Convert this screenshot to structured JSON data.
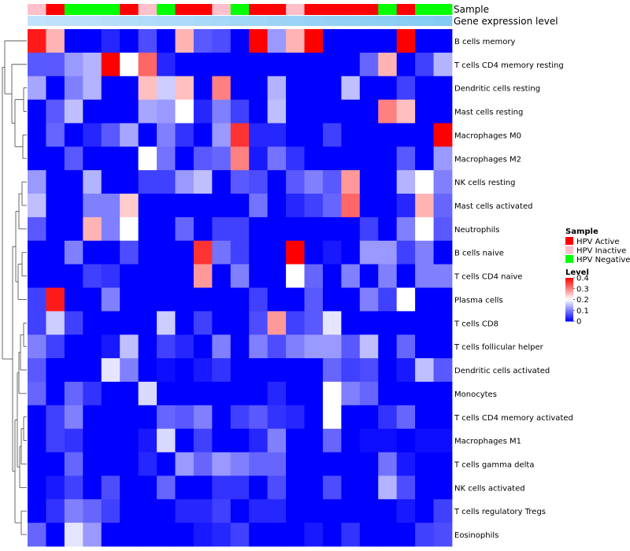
{
  "chart_data": {
    "type": "heatmap",
    "annotation_tracks": [
      {
        "label": "Sample",
        "values": [
          1,
          0,
          2,
          2,
          2,
          0,
          1,
          2,
          0,
          0,
          1,
          2,
          0,
          0,
          1,
          0,
          0,
          0,
          0,
          2,
          0,
          2,
          2
        ]
      },
      {
        "label": "Gene expression level",
        "values": [
          0.02,
          0.06,
          0.1,
          0.14,
          0.18,
          0.22,
          0.26,
          0.3,
          0.34,
          0.38,
          0.42,
          0.46,
          0.5,
          0.54,
          0.58,
          0.62,
          0.66,
          0.7,
          0.74,
          0.78,
          0.82,
          0.86,
          0.9
        ]
      }
    ],
    "annotation_colors": {
      "sample": [
        "#ff0000",
        "#ffc0cb",
        "#00ff00"
      ],
      "gene_low": "#c4e3fb",
      "gene_high": "#7cc8f2"
    },
    "rows": [
      "B cells memory",
      "T cells CD4 memory resting",
      "Dendritic cells resting",
      "Mast cells resting",
      "Macrophages M0",
      "Macrophages M2",
      "NK cells resting",
      "Mast cells activated",
      "Neutrophils",
      "B cells naive",
      "T cells CD4 naive",
      "Plasma cells",
      "T cells CD8",
      "T cells follicular helper",
      "Dendritic cells activated",
      "Monocytes",
      "T cells CD4 memory activated",
      "Macrophages M1",
      "T cells gamma delta",
      "NK cells activated",
      "T cells regulatory  Tregs",
      "Eosinophils"
    ],
    "values": [
      [
        0.38,
        0.26,
        0,
        0,
        0.03,
        0,
        0.06,
        0,
        0.26,
        0.07,
        0.06,
        0,
        0.4,
        0.12,
        0.26,
        0.4,
        0,
        0,
        0,
        0,
        0.4,
        0,
        0
      ],
      [
        0.07,
        0.07,
        0.12,
        0.14,
        0.4,
        0.2,
        0.32,
        0.03,
        0,
        0,
        0,
        0,
        0,
        0,
        0,
        0,
        0,
        0,
        0.08,
        0.26,
        0,
        0.05,
        0.14
      ],
      [
        0.13,
        0,
        0.1,
        0.14,
        0,
        0,
        0.25,
        0.16,
        0.25,
        0,
        0.3,
        0,
        0,
        0.14,
        0,
        0,
        0,
        0.15,
        0,
        0,
        0.05,
        0,
        0
      ],
      [
        0,
        0.07,
        0.15,
        0,
        0,
        0,
        0.13,
        0.12,
        0.2,
        0.03,
        0.1,
        0.05,
        0,
        0.15,
        0,
        0,
        0,
        0,
        0,
        0.3,
        0.25,
        0,
        0
      ],
      [
        0,
        0.08,
        0,
        0.03,
        0.07,
        0.13,
        0,
        0.1,
        0.04,
        0,
        0.12,
        0.36,
        0.03,
        0.03,
        0,
        0,
        0.05,
        0,
        0,
        0,
        0,
        0,
        0.4
      ],
      [
        0,
        0,
        0.07,
        0,
        0,
        0,
        0.2,
        0.09,
        0,
        0.07,
        0.08,
        0.3,
        0.02,
        0.09,
        0.04,
        0,
        0,
        0,
        0,
        0,
        0.07,
        0,
        0.12
      ],
      [
        0.12,
        0,
        0,
        0.14,
        0,
        0,
        0.05,
        0.05,
        0.12,
        0.15,
        0,
        0.07,
        0.06,
        0,
        0.07,
        0.1,
        0.07,
        0.28,
        0,
        0,
        0.14,
        0.2,
        0.1
      ],
      [
        0.15,
        0,
        0,
        0.1,
        0.1,
        0.24,
        0,
        0,
        0,
        0,
        0,
        0,
        0.09,
        0,
        0.03,
        0.05,
        0.08,
        0.32,
        0,
        0,
        0.03,
        0.26,
        0.08
      ],
      [
        0.07,
        0,
        0,
        0.26,
        0.1,
        0.2,
        0,
        0,
        0.08,
        0,
        0.05,
        0.05,
        0,
        0,
        0,
        0,
        0,
        0,
        0.05,
        0,
        0.1,
        0.2,
        0.07
      ],
      [
        0,
        0,
        0.1,
        0,
        0,
        0.06,
        0,
        0,
        0,
        0.36,
        0.09,
        0.05,
        0,
        0,
        0.4,
        0,
        0.02,
        0,
        0.12,
        0.12,
        0.05,
        0.1,
        0
      ],
      [
        0,
        0,
        0,
        0.05,
        0.04,
        0,
        0,
        0,
        0,
        0.28,
        0,
        0.1,
        0,
        0,
        0.2,
        0.08,
        0,
        0.1,
        0,
        0.1,
        0,
        0.1,
        0.1
      ],
      [
        0.05,
        0.38,
        0,
        0,
        0.1,
        0,
        0,
        0,
        0,
        0,
        0,
        0,
        0.05,
        0,
        0,
        0.07,
        0,
        0,
        0.1,
        0.05,
        0.2,
        0,
        0
      ],
      [
        0.05,
        0.16,
        0.05,
        0,
        0,
        0,
        0,
        0.16,
        0,
        0.05,
        0,
        0,
        0.06,
        0.28,
        0.05,
        0.07,
        0.18,
        0,
        0,
        0,
        0,
        0,
        0
      ],
      [
        0.1,
        0.05,
        0,
        0,
        0.02,
        0.15,
        0,
        0.05,
        0.03,
        0,
        0.1,
        0,
        0.1,
        0.06,
        0.1,
        0.12,
        0.12,
        0.07,
        0.15,
        0,
        0.08,
        0,
        0
      ],
      [
        0.07,
        0,
        0,
        0,
        0.18,
        0.1,
        0,
        0.01,
        0,
        0.02,
        0.04,
        0,
        0,
        0,
        0,
        0,
        0.08,
        0.05,
        0.06,
        0,
        0.02,
        0.15,
        0.07
      ],
      [
        0.08,
        0,
        0.08,
        0.04,
        0,
        0,
        0.17,
        0,
        0,
        0,
        0,
        0,
        0,
        0.03,
        0,
        0,
        0.2,
        0.1,
        0.08,
        0,
        0,
        0,
        0
      ],
      [
        0,
        0.05,
        0.1,
        0,
        0,
        0,
        0,
        0.08,
        0.07,
        0.1,
        0,
        0.05,
        0.07,
        0.04,
        0.03,
        0,
        0.2,
        0,
        0,
        0.04,
        0.08,
        0,
        0
      ],
      [
        0,
        0.05,
        0.04,
        0,
        0,
        0,
        0.02,
        0.17,
        0,
        0.05,
        0,
        0,
        0.03,
        0.1,
        0,
        0,
        0.08,
        0,
        0.01,
        0.01,
        0,
        0.01,
        0.01
      ],
      [
        0,
        0,
        0.08,
        0,
        0,
        0,
        0.03,
        0,
        0.12,
        0.08,
        0.12,
        0.1,
        0.08,
        0.08,
        0,
        0,
        0,
        0,
        0,
        0.09,
        0.02,
        0,
        0
      ],
      [
        0,
        0.02,
        0.05,
        0,
        0.06,
        0,
        0,
        0.08,
        0,
        0,
        0.04,
        0.04,
        0,
        0.06,
        0,
        0,
        0.06,
        0,
        0,
        0.14,
        0.06,
        0,
        0
      ],
      [
        0,
        0.04,
        0.1,
        0.08,
        0.05,
        0,
        0,
        0,
        0.03,
        0.03,
        0.05,
        0,
        0.03,
        0.03,
        0,
        0,
        0,
        0,
        0,
        0,
        0.02,
        0,
        0.05
      ],
      [
        0.08,
        0,
        0.18,
        0.12,
        0,
        0,
        0,
        0,
        0,
        0.02,
        0.03,
        0.05,
        0,
        0,
        0,
        0.02,
        0,
        0.04,
        0,
        0,
        0,
        0.05,
        0.06
      ]
    ],
    "scale": {
      "min": 0,
      "max": 0.4
    },
    "color_scale": {
      "low": "#0000ff",
      "mid": "#ffffff",
      "high": "#ff0000"
    },
    "row_dendrogram": true,
    "legend": {
      "placement": "right",
      "sample": {
        "title": "Sample",
        "entries": [
          {
            "label": "HPV Active",
            "color": "#ff0000"
          },
          {
            "label": "HPV Inactive",
            "color": "#ffc0cb"
          },
          {
            "label": "HPV Negative",
            "color": "#00ff00"
          }
        ]
      },
      "level": {
        "title": "Level",
        "ticks": [
          0.4,
          0.3,
          0.2,
          0.1,
          0
        ]
      }
    }
  }
}
